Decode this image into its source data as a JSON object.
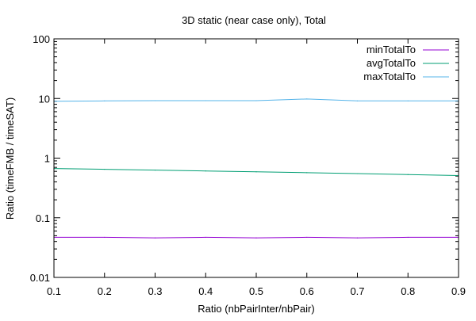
{
  "chart_data": {
    "type": "line",
    "title": "3D static (near case only), Total",
    "xlabel": "Ratio (nbPairInter/nbPair)",
    "ylabel": "Ratio (timeFMB / timeSAT)",
    "xlim": [
      0.1,
      0.9
    ],
    "ylim": [
      0.01,
      100
    ],
    "yscale": "log",
    "grid": false,
    "legend_position": "top-right",
    "x_ticks": [
      "0.1",
      "0.2",
      "0.3",
      "0.4",
      "0.5",
      "0.6",
      "0.7",
      "0.8",
      "0.9"
    ],
    "y_ticks": [
      "0.01",
      "0.1",
      "1",
      "10",
      "100"
    ],
    "x": [
      0.1,
      0.2,
      0.3,
      0.4,
      0.5,
      0.6,
      0.7,
      0.8,
      0.9
    ],
    "series": [
      {
        "name": "minTotalTo",
        "color": "#9400d3",
        "values": [
          0.047,
          0.047,
          0.046,
          0.047,
          0.046,
          0.047,
          0.046,
          0.047,
          0.047
        ]
      },
      {
        "name": "avgTotalTo",
        "color": "#009e73",
        "values": [
          0.67,
          0.65,
          0.63,
          0.61,
          0.59,
          0.57,
          0.55,
          0.53,
          0.51
        ]
      },
      {
        "name": "maxTotalTo",
        "color": "#56b4e9",
        "values": [
          9.0,
          9.1,
          9.2,
          9.2,
          9.2,
          9.8,
          9.1,
          9.1,
          9.1
        ]
      }
    ]
  }
}
